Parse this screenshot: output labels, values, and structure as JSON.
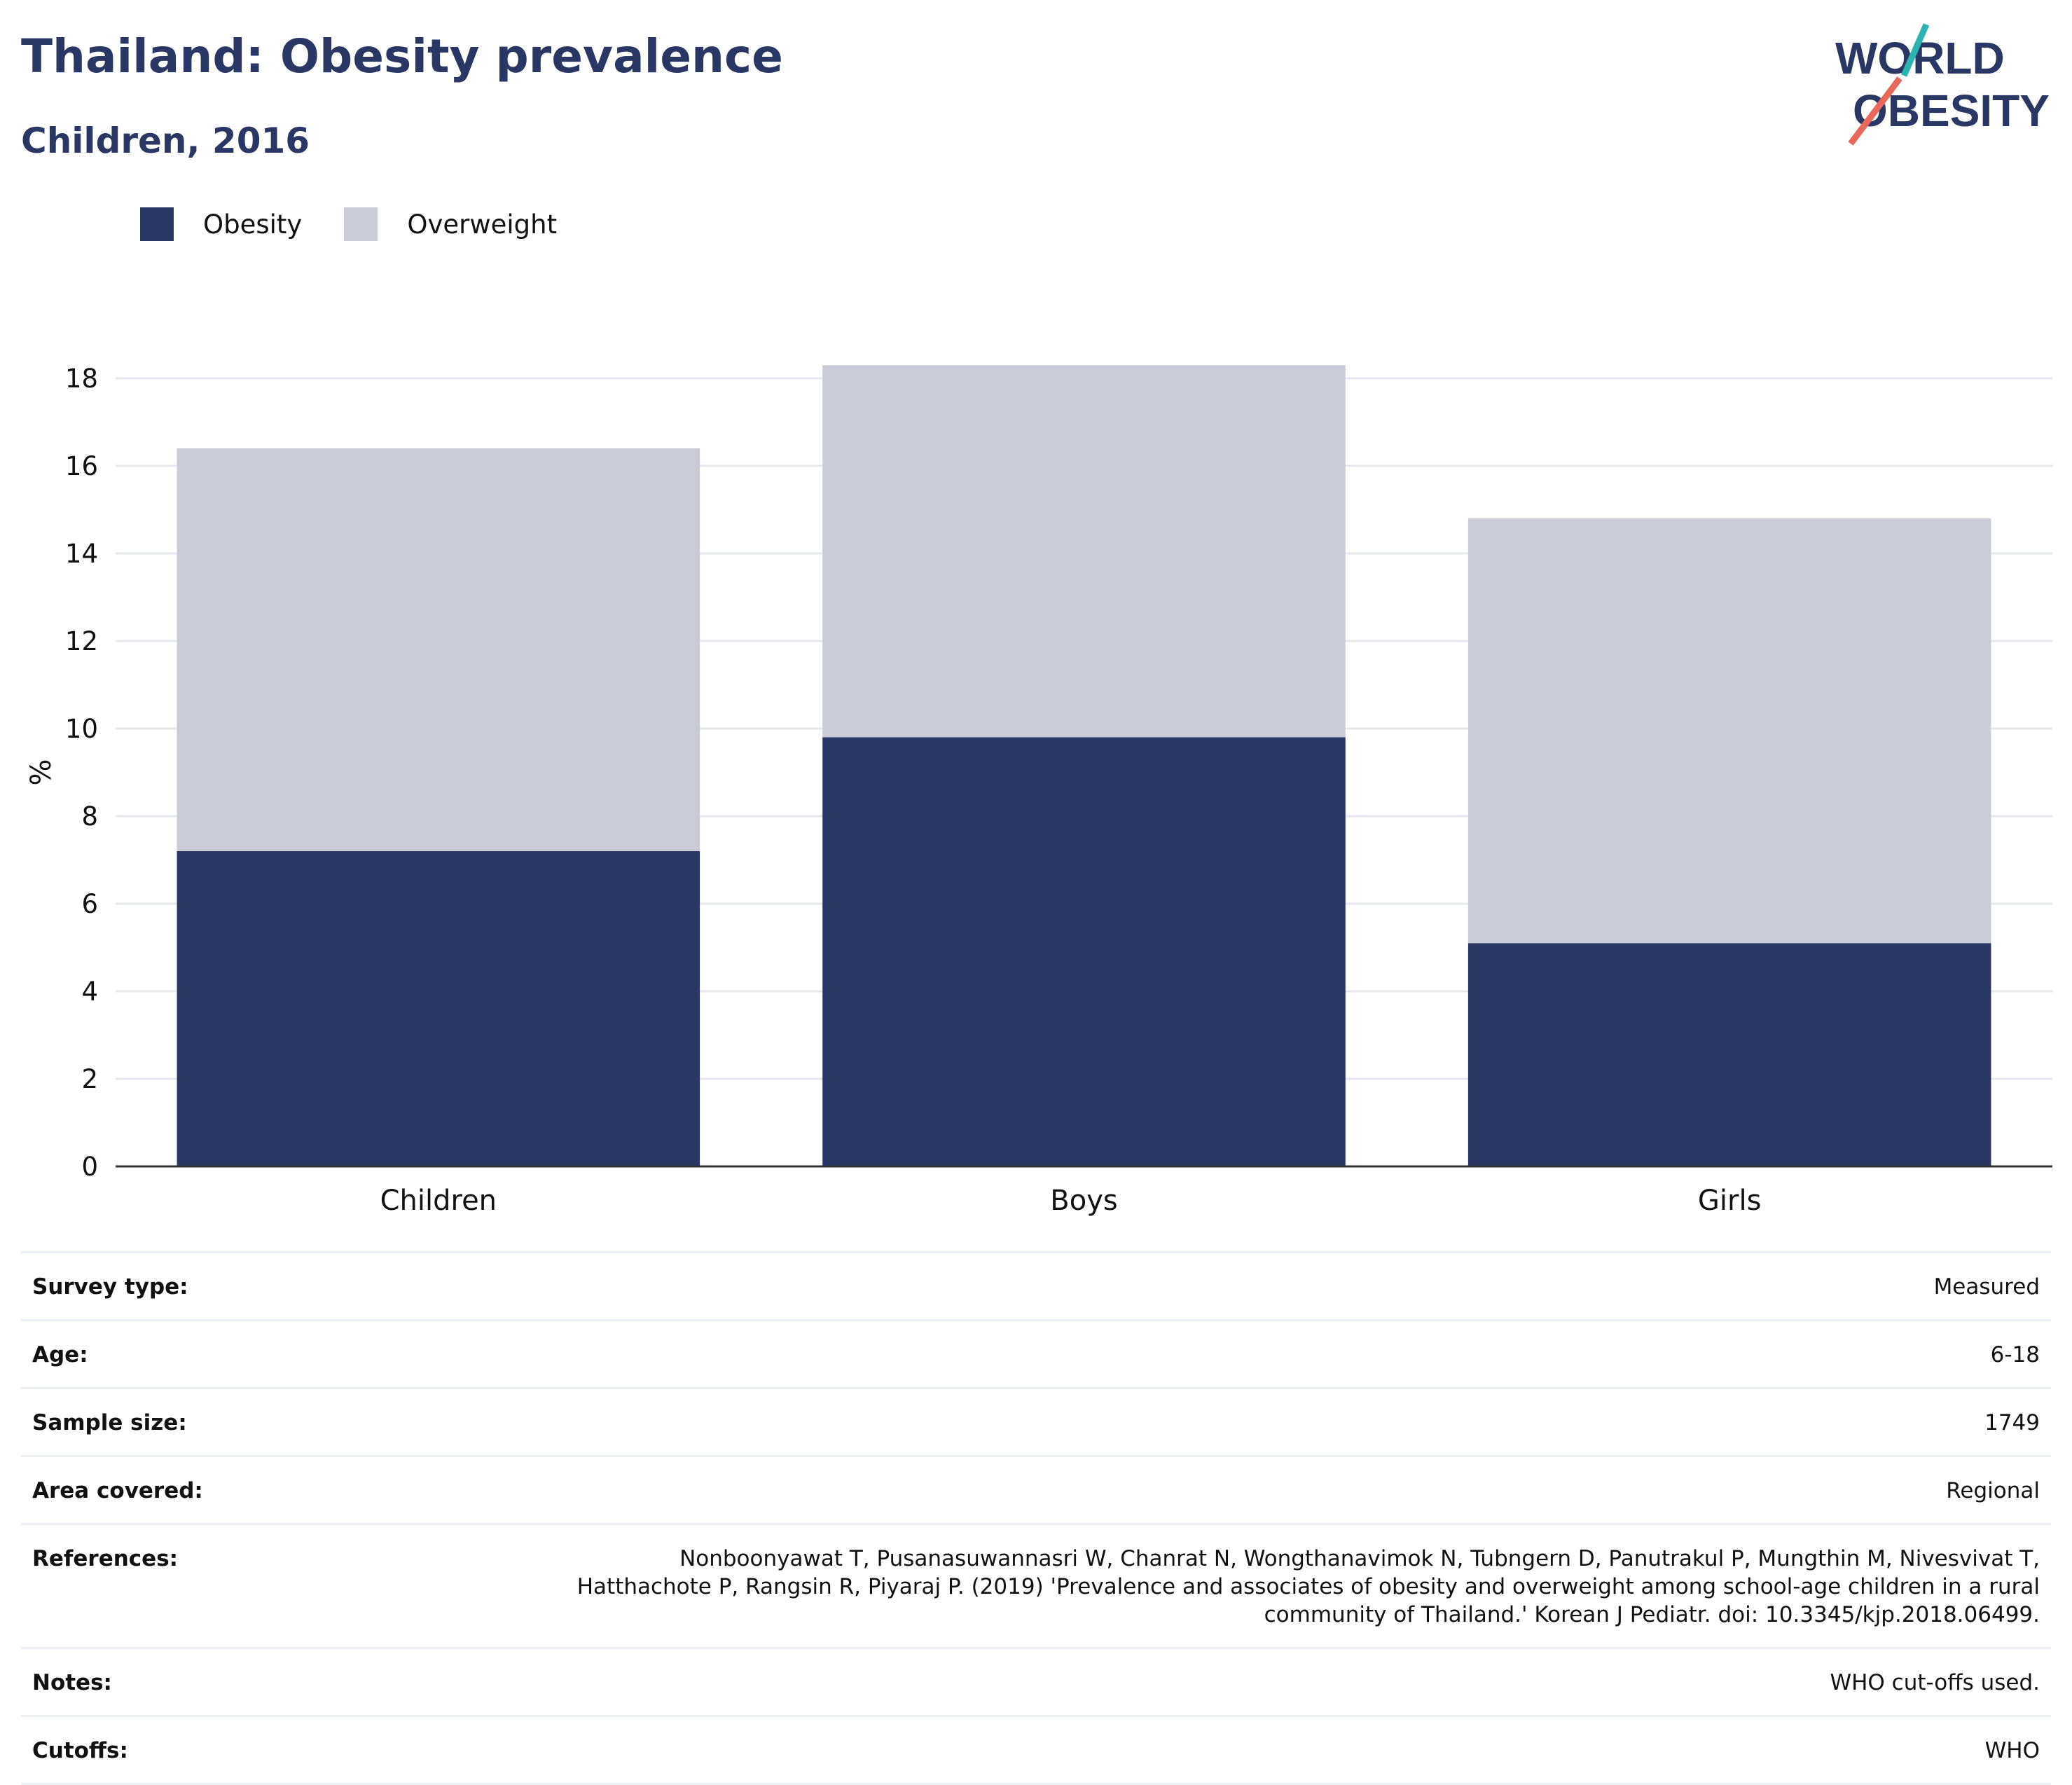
{
  "header": {
    "title": "Thailand: Obesity prevalence",
    "subtitle": "Children, 2016"
  },
  "logo": {
    "line1": "WORLD",
    "line2": "OBESITY",
    "accent_teal": "#2bb3b1",
    "accent_coral": "#e8685a",
    "text_color": "#2a3764"
  },
  "legend": [
    {
      "label": "Obesity",
      "color": "#2a3764"
    },
    {
      "label": "Overweight",
      "color": "#cacbd6"
    }
  ],
  "chart_data": {
    "type": "bar",
    "stacked": true,
    "categories": [
      "Children",
      "Boys",
      "Girls"
    ],
    "series": [
      {
        "name": "Obesity",
        "color": "#2a3764",
        "values": [
          7.2,
          9.8,
          5.1
        ]
      },
      {
        "name": "Overweight",
        "color": "#cacbd6",
        "values": [
          9.2,
          8.5,
          9.7
        ]
      }
    ],
    "ylabel": "%",
    "ylim": [
      0,
      18
    ],
    "yticks": [
      0,
      2,
      4,
      6,
      8,
      10,
      12,
      14,
      16,
      18
    ],
    "grid": true,
    "legend_position": "top-left"
  },
  "info": [
    {
      "key": "Survey type:",
      "value": "Measured"
    },
    {
      "key": "Age:",
      "value": "6-18"
    },
    {
      "key": "Sample size:",
      "value": "1749"
    },
    {
      "key": "Area covered:",
      "value": "Regional"
    },
    {
      "key": "References:",
      "value": "Nonboonyawat T, Pusanasuwannasri W, Chanrat N, Wongthanavimok N, Tubngern D, Panutrakul P, Mungthin M, Nivesvivat T, Hatthachote P, Rangsin R, Piyaraj P. (2019) 'Prevalence and associates of obesity and overweight among school-age children in a rural community of Thailand.' Korean J Pediatr. doi: 10.3345/kjp.2018.06499."
    },
    {
      "key": "Notes:",
      "value": "WHO cut-offs used."
    },
    {
      "key": "Cutoffs:",
      "value": "WHO"
    }
  ]
}
